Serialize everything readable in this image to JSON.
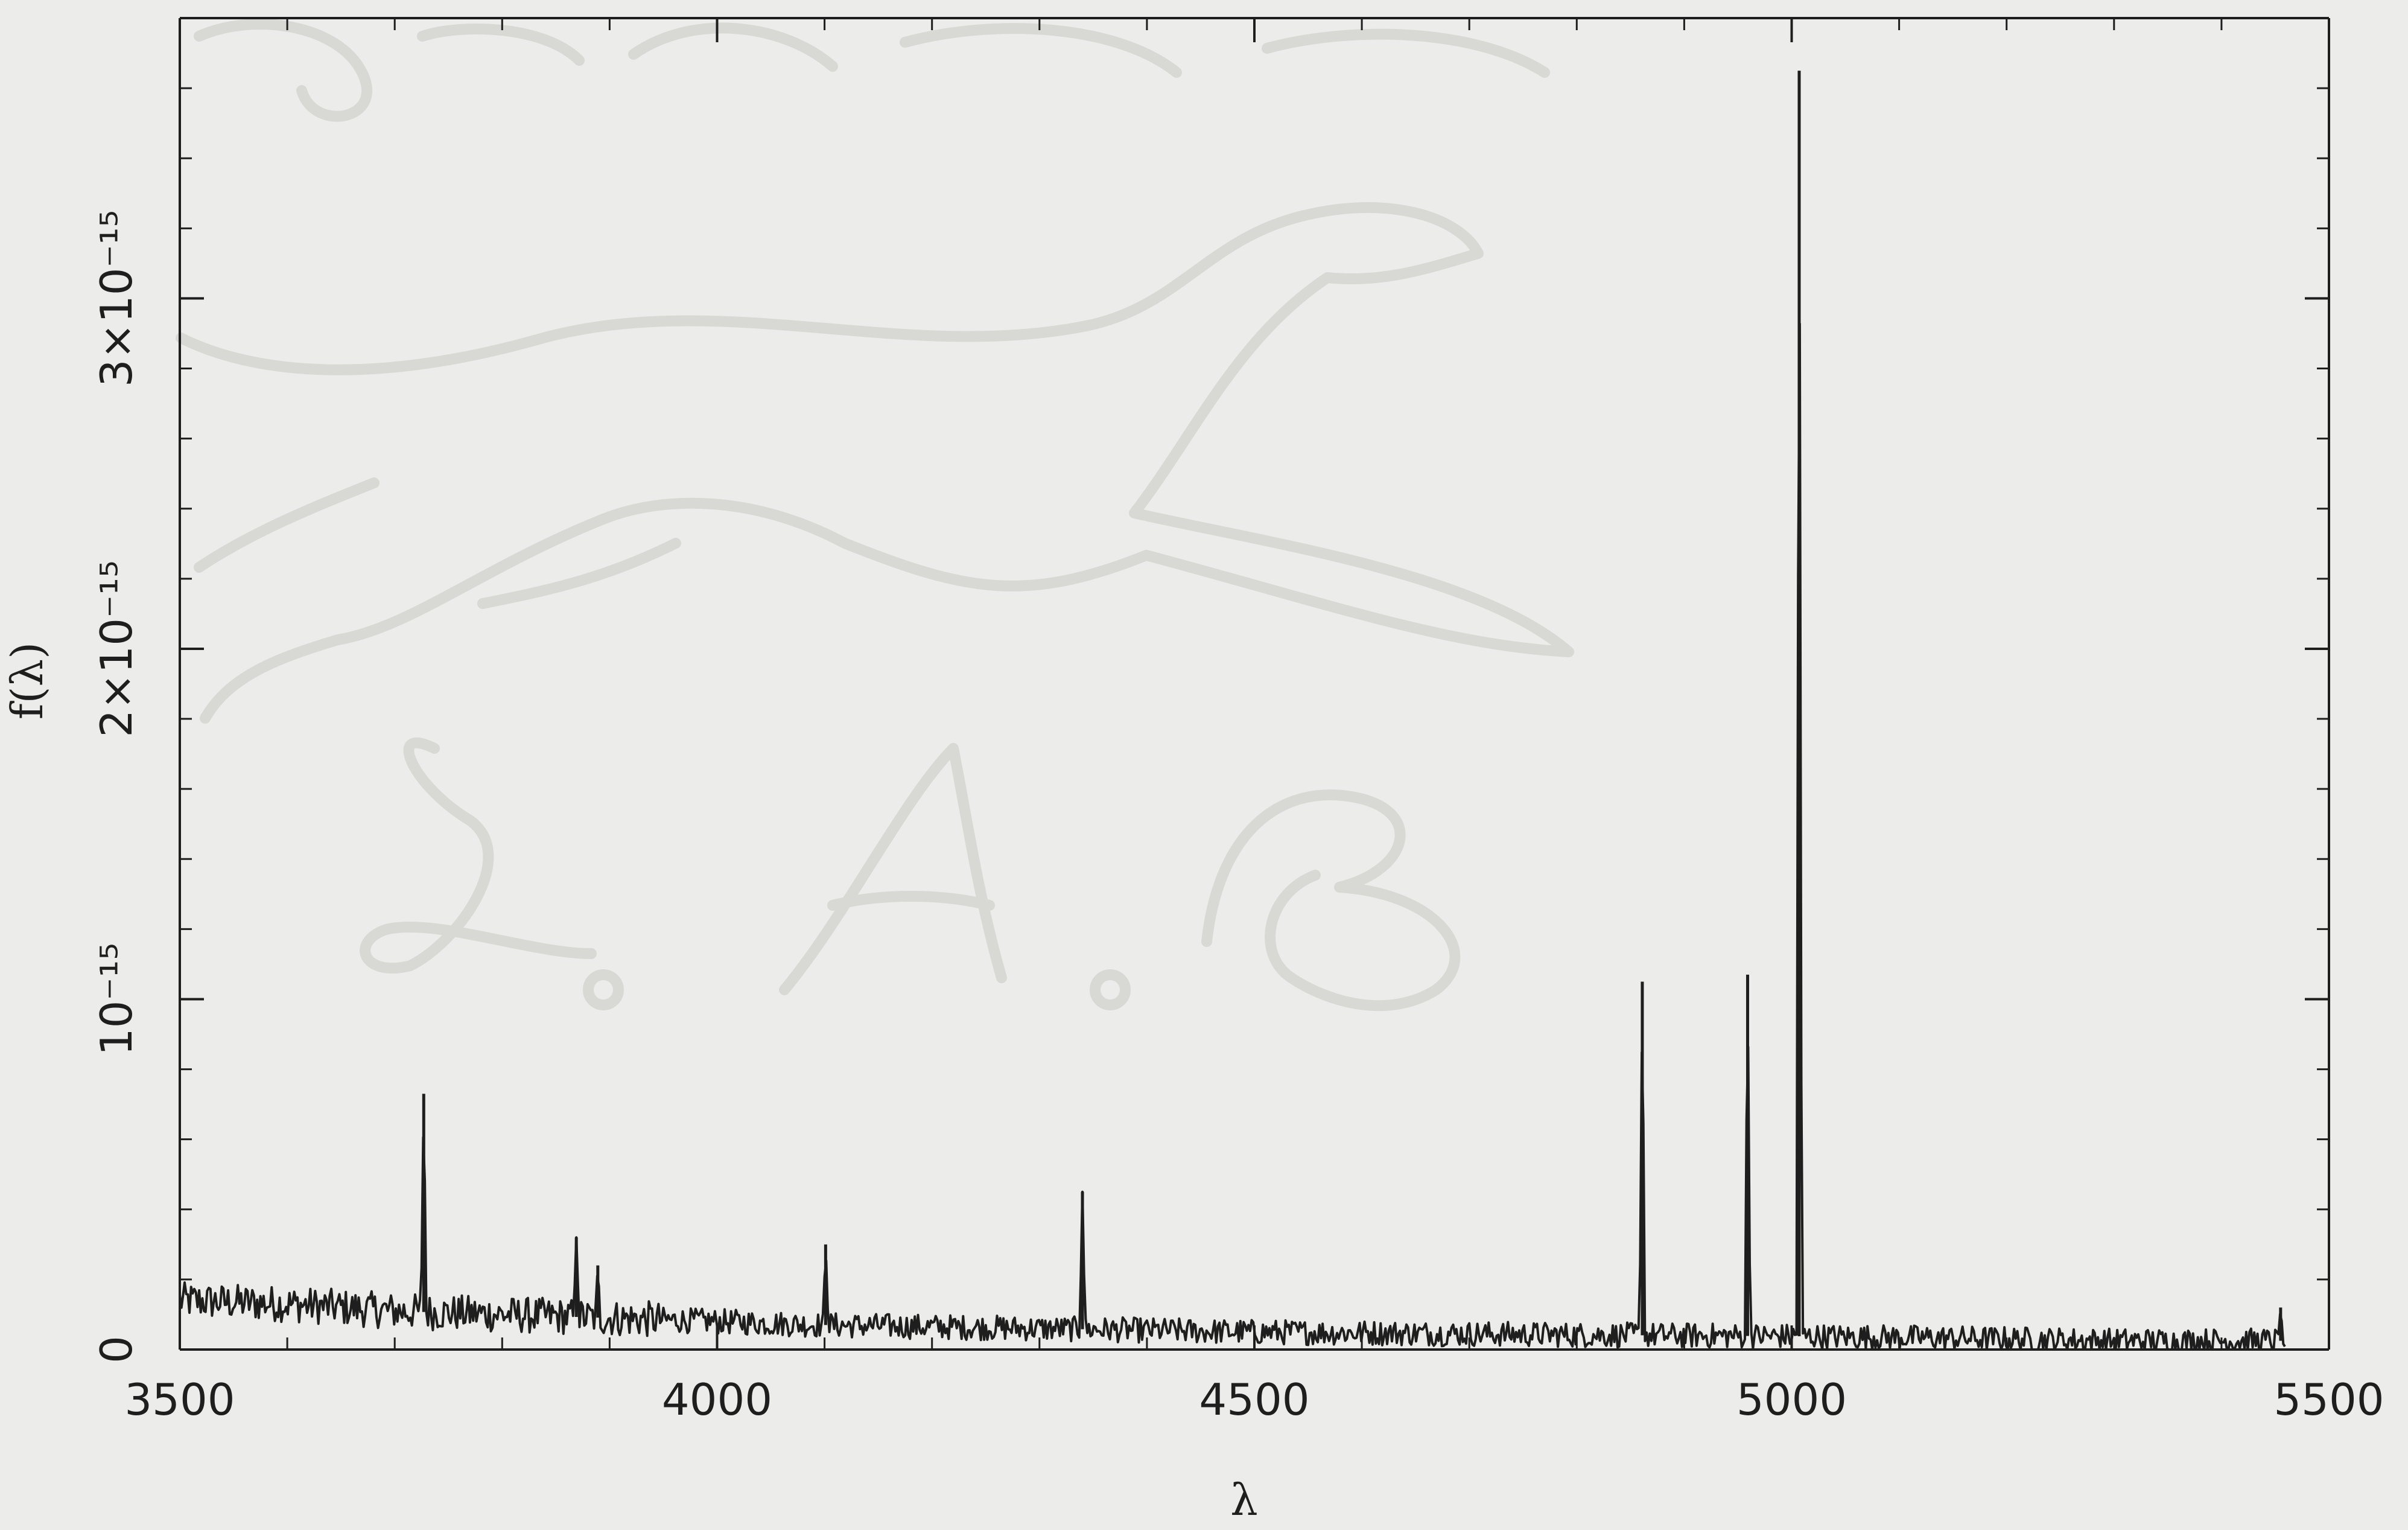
{
  "chart_data": {
    "type": "line",
    "title": "",
    "xlabel": "λ",
    "ylabel": "f(λ)",
    "xlim": [
      3500,
      5500
    ],
    "ylim": [
      0,
      3.8e-15
    ],
    "x_ticks": [
      {
        "value": 3500,
        "label": "3500"
      },
      {
        "value": 4000,
        "label": "4000"
      },
      {
        "value": 4500,
        "label": "4500"
      },
      {
        "value": 5000,
        "label": "5000"
      },
      {
        "value": 5500,
        "label": "5500"
      }
    ],
    "y_ticks": [
      {
        "value": 0,
        "label": "0"
      },
      {
        "value": 1e-15,
        "label": "10⁻¹⁵"
      },
      {
        "value": 2e-15,
        "label": "2×10⁻¹⁵"
      },
      {
        "value": 3e-15,
        "label": "3×10⁻¹⁵"
      }
    ],
    "continuum": [
      [
        3500,
        1.4e-16
      ],
      [
        3600,
        1.3e-16
      ],
      [
        3700,
        1.1e-16
      ],
      [
        3800,
        1e-16
      ],
      [
        3900,
        9e-17
      ],
      [
        4000,
        8e-17
      ],
      [
        4100,
        7e-17
      ],
      [
        4200,
        6.5e-17
      ],
      [
        4300,
        6e-17
      ],
      [
        4400,
        5.5e-17
      ],
      [
        4500,
        5e-17
      ],
      [
        4600,
        4.8e-17
      ],
      [
        4700,
        4.5e-17
      ],
      [
        4800,
        4.2e-17
      ],
      [
        4900,
        4e-17
      ],
      [
        5000,
        3.8e-17
      ],
      [
        5100,
        3.5e-17
      ],
      [
        5200,
        3e-17
      ],
      [
        5300,
        2.5e-17
      ],
      [
        5400,
        2.5e-17
      ],
      [
        5460,
        2.5e-17
      ]
    ],
    "emission_lines": [
      {
        "x": 3727,
        "y": 7.3e-16
      },
      {
        "x": 3869,
        "y": 3.2e-16
      },
      {
        "x": 3889,
        "y": 2.4e-16
      },
      {
        "x": 4101,
        "y": 3e-16
      },
      {
        "x": 4340,
        "y": 4.5e-16
      },
      {
        "x": 4861,
        "y": 1.05e-15
      },
      {
        "x": 4959,
        "y": 1.07e-15
      },
      {
        "x": 5007,
        "y": 3.65e-15
      },
      {
        "x": 5455,
        "y": 1.2e-16
      }
    ],
    "noise_amplitude": 4e-17,
    "baseline": {
      "y": 0,
      "style": "dash-dot"
    },
    "grid": false,
    "legend": "none"
  },
  "colors": {
    "background": "#ececea",
    "ink": "#1e1e1e",
    "watermark": "#d6d6d2"
  }
}
